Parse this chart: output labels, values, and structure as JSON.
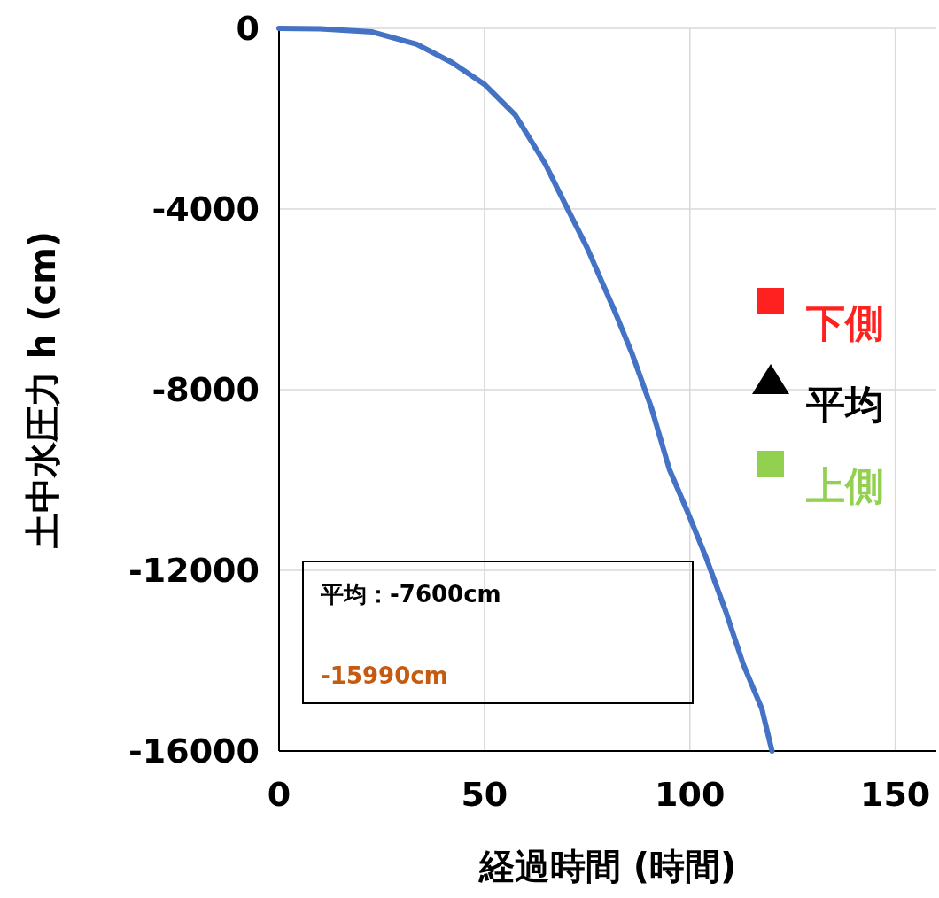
{
  "chart_data": {
    "type": "line",
    "xlabel": "経過時間 (時間)",
    "ylabel": "土中水圧力 h (cm)",
    "xlim": [
      0,
      160
    ],
    "xticks": [
      0,
      50,
      100,
      150
    ],
    "ylim": [
      -16000,
      0
    ],
    "yticks": [
      -16000,
      -12000,
      -8000,
      -4000,
      0
    ],
    "grid": true,
    "legend": "right",
    "annotations": [
      "平均：-7600cm",
      "-15990cm"
    ],
    "series": [
      {
        "color": "#4472c4",
        "x": [
          0,
          10,
          22.7,
          33.5,
          42,
          50,
          57.5,
          64.8,
          68,
          75,
          81.6,
          86,
          90.6,
          95,
          99.6,
          104,
          108.7,
          113,
          117.5,
          120
        ],
        "values": [
          0,
          -10,
          -80,
          -350,
          -750,
          -1240,
          -1920,
          -3000,
          -3590,
          -4860,
          -6240,
          -7220,
          -8390,
          -9760,
          -10740,
          -11730,
          -12900,
          -14080,
          -15060,
          -16000
        ]
      },
      {
        "name": "下側",
        "type": "scatter",
        "marker": "square",
        "color": "#ff2020"
      },
      {
        "name": "平均",
        "type": "scatter",
        "marker": "triangle",
        "color": "#000000"
      },
      {
        "name": "上側",
        "type": "scatter",
        "marker": "square",
        "color": "#92d050"
      }
    ]
  }
}
